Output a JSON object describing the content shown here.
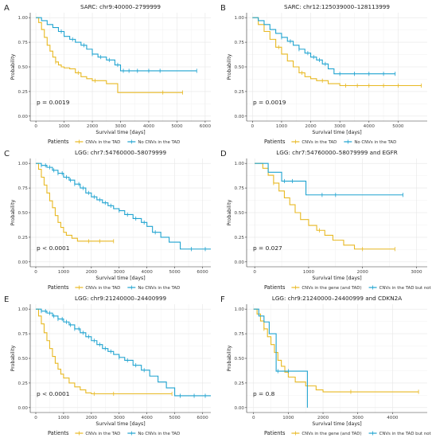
{
  "figure": {
    "colors": {
      "orange": "#e8b923",
      "blue": "#1fa3d0"
    }
  },
  "chart_data": [
    {
      "type": "line",
      "letter": "A",
      "title": "SARC: chr9:40000–2799999",
      "xlabel": "Survival time [days]",
      "ylabel": "Probability",
      "xlim": [
        -200,
        6200
      ],
      "ylim": [
        -0.05,
        1.05
      ],
      "xticks": [
        0,
        1000,
        2000,
        3000,
        4000,
        5000,
        6000
      ],
      "yticks": [
        0,
        0.25,
        0.5,
        0.75,
        1
      ],
      "ytick_labels": [
        "0.00",
        "0.25",
        "0.50",
        "0.75",
        "1.00"
      ],
      "pvalue": "p = 0.0019",
      "legend_title": "Patients",
      "series": [
        {
          "name": "CNVs in the TAD",
          "color": "#e8b923",
          "x": [
            0,
            100,
            200,
            300,
            400,
            500,
            600,
            700,
            800,
            900,
            1000,
            1200,
            1400,
            1600,
            1800,
            2000,
            2200,
            2500,
            2900,
            5200
          ],
          "y": [
            1.0,
            0.95,
            0.88,
            0.8,
            0.72,
            0.66,
            0.6,
            0.55,
            0.52,
            0.5,
            0.49,
            0.48,
            0.44,
            0.4,
            0.38,
            0.36,
            0.36,
            0.33,
            0.24,
            0.24
          ],
          "censor_x": [
            700,
            1500,
            2100,
            4500,
            5200
          ]
        },
        {
          "name": "No CNVs in the TAD",
          "color": "#1fa3d0",
          "x": [
            0,
            200,
            400,
            600,
            800,
            1000,
            1200,
            1400,
            1600,
            1800,
            2000,
            2200,
            2500,
            2800,
            3000,
            3500,
            5700
          ],
          "y": [
            1.0,
            0.97,
            0.93,
            0.9,
            0.86,
            0.81,
            0.78,
            0.75,
            0.72,
            0.68,
            0.63,
            0.6,
            0.57,
            0.52,
            0.46,
            0.46,
            0.46
          ],
          "censor_x": [
            900,
            1300,
            1700,
            2000,
            2300,
            2600,
            2900,
            3100,
            3300,
            3600,
            4000,
            4400,
            5700
          ]
        }
      ]
    },
    {
      "type": "line",
      "letter": "B",
      "title": "SARC: chr12:125039000–128113999",
      "xlabel": "Survival time [days]",
      "ylabel": "Probability",
      "xlim": [
        -200,
        6000
      ],
      "ylim": [
        -0.05,
        1.05
      ],
      "xticks": [
        0,
        1000,
        2000,
        3000,
        4000,
        5000
      ],
      "yticks": [
        0,
        0.25,
        0.5,
        0.75,
        1
      ],
      "ytick_labels": [
        "0.00",
        "0.25",
        "0.50",
        "0.75",
        "1.00"
      ],
      "pvalue": "p = 0.0019",
      "legend_title": "Patients",
      "series": [
        {
          "name": "CNVs in the TAD",
          "color": "#e8b923",
          "x": [
            0,
            200,
            400,
            600,
            800,
            1000,
            1200,
            1400,
            1600,
            1800,
            2000,
            2200,
            2600,
            3000,
            5800
          ],
          "y": [
            1.0,
            0.93,
            0.86,
            0.78,
            0.7,
            0.63,
            0.56,
            0.5,
            0.44,
            0.4,
            0.38,
            0.36,
            0.33,
            0.31,
            0.31
          ],
          "censor_x": [
            900,
            1700,
            2400,
            3200,
            3600,
            4000,
            4500,
            5000,
            5800
          ]
        },
        {
          "name": "No CNVs in the TAD",
          "color": "#1fa3d0",
          "x": [
            0,
            200,
            400,
            600,
            800,
            1000,
            1200,
            1400,
            1600,
            1800,
            2000,
            2200,
            2400,
            2600,
            2800,
            4900
          ],
          "y": [
            1.0,
            0.97,
            0.93,
            0.88,
            0.84,
            0.8,
            0.76,
            0.72,
            0.68,
            0.64,
            0.6,
            0.57,
            0.53,
            0.48,
            0.43,
            0.43
          ],
          "censor_x": [
            1000,
            1300,
            1600,
            1900,
            2100,
            2300,
            2500,
            3000,
            3500,
            4000,
            4500,
            4900
          ]
        }
      ]
    },
    {
      "type": "line",
      "letter": "C",
      "title": "LGG: chr7:54760000–58079999",
      "xlabel": "Survival time [days]",
      "ylabel": "Probability",
      "xlim": [
        -200,
        6300
      ],
      "ylim": [
        -0.05,
        1.05
      ],
      "xticks": [
        0,
        1000,
        2000,
        3000,
        4000,
        5000,
        6000
      ],
      "yticks": [
        0,
        0.25,
        0.5,
        0.75,
        1
      ],
      "ytick_labels": [
        "0.00",
        "0.25",
        "0.50",
        "0.75",
        "1.00"
      ],
      "pvalue": "p < 0.0001",
      "legend_title": "Patients",
      "series": [
        {
          "name": "CNVs in the TAD",
          "color": "#e8b923",
          "x": [
            0,
            100,
            200,
            300,
            400,
            500,
            600,
            700,
            800,
            900,
            1000,
            1100,
            1300,
            1500,
            1700,
            2800
          ],
          "y": [
            1.0,
            0.94,
            0.86,
            0.78,
            0.7,
            0.62,
            0.55,
            0.47,
            0.4,
            0.35,
            0.3,
            0.27,
            0.24,
            0.21,
            0.21,
            0.21
          ],
          "censor_x": [
            1900,
            2300,
            2800
          ]
        },
        {
          "name": "No CNVs in the TAD",
          "color": "#1fa3d0",
          "x": [
            0,
            200,
            400,
            600,
            800,
            1000,
            1200,
            1400,
            1600,
            1800,
            2000,
            2200,
            2400,
            2600,
            2800,
            3000,
            3200,
            3500,
            3800,
            4000,
            4200,
            4500,
            4800,
            5200,
            6300
          ],
          "y": [
            1.0,
            0.98,
            0.96,
            0.93,
            0.9,
            0.86,
            0.83,
            0.79,
            0.75,
            0.7,
            0.66,
            0.63,
            0.6,
            0.57,
            0.54,
            0.52,
            0.48,
            0.44,
            0.4,
            0.36,
            0.3,
            0.25,
            0.2,
            0.13,
            0.13
          ],
          "censor_x": [
            200,
            350,
            500,
            650,
            800,
            950,
            1100,
            1250,
            1400,
            1550,
            1700,
            1900,
            2100,
            2300,
            2500,
            2700,
            3000,
            3300,
            3600,
            3900,
            4300,
            5600,
            6100
          ]
        }
      ]
    },
    {
      "type": "line",
      "letter": "D",
      "title": "LGG: chr7:54760000–58079999 and EGFR",
      "xlabel": "Survival time [days]",
      "ylabel": "Probability",
      "xlim": [
        -150,
        3200
      ],
      "ylim": [
        -0.05,
        1.05
      ],
      "xticks": [
        0,
        1000,
        2000,
        3000
      ],
      "yticks": [
        0,
        0.25,
        0.5,
        0.75,
        1
      ],
      "ytick_labels": [
        "0.00",
        "0.25",
        "0.50",
        "0.75",
        "1.00"
      ],
      "pvalue": "p = 0.027",
      "legend_title": "Patients",
      "series": [
        {
          "name": "CNVs in the gene (and TAD)",
          "color": "#e8b923",
          "x": [
            0,
            150,
            250,
            350,
            450,
            550,
            650,
            750,
            850,
            1000,
            1150,
            1300,
            1450,
            1650,
            1850,
            2600
          ],
          "y": [
            1.0,
            0.95,
            0.88,
            0.8,
            0.72,
            0.65,
            0.58,
            0.5,
            0.43,
            0.37,
            0.32,
            0.27,
            0.22,
            0.17,
            0.13,
            0.13
          ],
          "censor_x": [
            350,
            1200,
            2000,
            2600
          ]
        },
        {
          "name": "CNVs in the TAD but not the gene",
          "color": "#1fa3d0",
          "x": [
            0,
            250,
            500,
            950,
            2750
          ],
          "y": [
            1.0,
            0.91,
            0.82,
            0.68,
            0.68
          ],
          "censor_x": [
            550,
            700,
            1250,
            1500,
            2750
          ]
        }
      ]
    },
    {
      "type": "line",
      "letter": "E",
      "title": "LGG: chr9:21240000–24400999",
      "xlabel": "Survival time [days]",
      "ylabel": "Probability",
      "xlim": [
        -200,
        6300
      ],
      "ylim": [
        -0.05,
        1.05
      ],
      "xticks": [
        0,
        1000,
        2000,
        3000,
        4000,
        5000,
        6000
      ],
      "yticks": [
        0,
        0.25,
        0.5,
        0.75,
        1
      ],
      "ytick_labels": [
        "0.00",
        "0.25",
        "0.50",
        "0.75",
        "1.00"
      ],
      "pvalue": "p < 0.0001",
      "legend_title": "Patients",
      "series": [
        {
          "name": "CNVs in the TAD",
          "color": "#e8b923",
          "x": [
            0,
            100,
            200,
            300,
            400,
            500,
            600,
            700,
            800,
            900,
            1000,
            1200,
            1400,
            1600,
            1800,
            2000,
            4900
          ],
          "y": [
            1.0,
            0.93,
            0.85,
            0.76,
            0.68,
            0.6,
            0.52,
            0.45,
            0.39,
            0.34,
            0.3,
            0.25,
            0.21,
            0.18,
            0.15,
            0.14,
            0.14
          ],
          "censor_x": [
            2100,
            2800,
            4900
          ]
        },
        {
          "name": "No CNVs in the TAD",
          "color": "#1fa3d0",
          "x": [
            0,
            200,
            400,
            600,
            800,
            1000,
            1200,
            1400,
            1600,
            1800,
            2000,
            2200,
            2400,
            2600,
            2800,
            3000,
            3200,
            3500,
            3800,
            4100,
            4400,
            4700,
            5000,
            6300
          ],
          "y": [
            1.0,
            0.98,
            0.96,
            0.93,
            0.9,
            0.87,
            0.84,
            0.8,
            0.76,
            0.72,
            0.68,
            0.64,
            0.6,
            0.57,
            0.54,
            0.51,
            0.48,
            0.43,
            0.38,
            0.32,
            0.26,
            0.2,
            0.12,
            0.12
          ],
          "censor_x": [
            200,
            350,
            500,
            650,
            800,
            950,
            1100,
            1250,
            1400,
            1550,
            1700,
            1900,
            2100,
            2300,
            2500,
            2700,
            3000,
            3300,
            3600,
            3900,
            5200,
            5700,
            6100
          ]
        }
      ]
    },
    {
      "type": "line",
      "letter": "F",
      "title": "LGG: chr9:21240000–24400999 and CDKN2A",
      "xlabel": "Survival time [days]",
      "ylabel": "Probability",
      "xlim": [
        -200,
        5000
      ],
      "ylim": [
        -0.05,
        1.05
      ],
      "xticks": [
        0,
        1000,
        2000,
        3000,
        4000
      ],
      "yticks": [
        0,
        0.25,
        0.5,
        0.75,
        1
      ],
      "ytick_labels": [
        "0.00",
        "0.25",
        "0.50",
        "0.75",
        "1.00"
      ],
      "pvalue": "p = 0.8",
      "legend_title": "Patients",
      "series": [
        {
          "name": "CNVs in the gene (and TAD)",
          "color": "#e8b923",
          "x": [
            0,
            100,
            200,
            300,
            400,
            500,
            600,
            700,
            800,
            900,
            1000,
            1200,
            1500,
            1800,
            2000,
            4750
          ],
          "y": [
            1.0,
            0.95,
            0.88,
            0.8,
            0.72,
            0.64,
            0.56,
            0.48,
            0.42,
            0.36,
            0.31,
            0.26,
            0.22,
            0.18,
            0.16,
            0.16
          ],
          "censor_x": [
            300,
            2800,
            4750
          ]
        },
        {
          "name": "CNVs in the TAD but not the gene",
          "color": "#1fa3d0",
          "x": [
            0,
            150,
            300,
            450,
            650,
            1500,
            1550
          ],
          "y": [
            1.0,
            0.93,
            0.87,
            0.75,
            0.37,
            0.37,
            0.0
          ],
          "censor_x": [
            700,
            1000
          ]
        }
      ]
    }
  ]
}
